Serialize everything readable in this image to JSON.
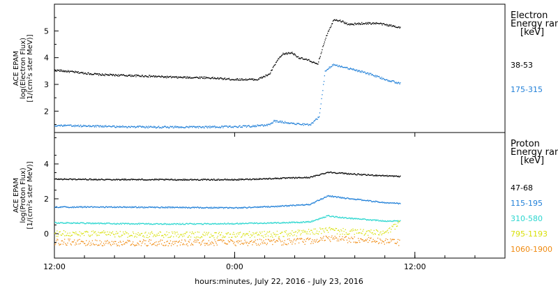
{
  "chart_data": [
    {
      "type": "scatter",
      "panel": "electron",
      "ylabel": [
        "ACE EPAM",
        "log(Electron Flux)",
        "[1/(cm²s ster MeV)]"
      ],
      "ylim": [
        1.2,
        6.0
      ],
      "yticks": [
        2,
        3,
        4,
        5
      ],
      "legend_title": [
        "Electron",
        "Energy ranges",
        "[keV]"
      ],
      "series": [
        {
          "name": "38-53",
          "color": "#000000",
          "x": [
            0,
            3,
            6,
            8,
            10,
            12,
            13.5,
            14.3,
            14.8,
            15.2,
            15.8,
            16.3,
            17,
            17.5,
            18,
            18.2,
            18.6,
            19,
            19.6,
            20.5,
            21.5,
            23
          ],
          "values": [
            3.55,
            3.38,
            3.33,
            3.28,
            3.27,
            3.2,
            3.2,
            3.4,
            3.9,
            4.15,
            4.2,
            4.0,
            3.9,
            3.75,
            4.7,
            5.0,
            5.45,
            5.4,
            5.25,
            5.3,
            5.3,
            5.15
          ]
        },
        {
          "name": "175-315",
          "color": "#1f7fd8",
          "x": [
            0,
            3,
            6,
            10,
            13,
            14.3,
            14.6,
            15.3,
            16,
            17,
            17.6,
            18,
            18.5,
            19,
            20,
            21,
            22,
            23
          ],
          "values": [
            1.48,
            1.45,
            1.42,
            1.42,
            1.45,
            1.5,
            1.65,
            1.6,
            1.55,
            1.5,
            1.8,
            3.5,
            3.75,
            3.7,
            3.55,
            3.4,
            3.2,
            3.05
          ]
        }
      ]
    },
    {
      "type": "scatter",
      "panel": "proton",
      "ylabel": [
        "ACE EPAM",
        "log(Proton Flux)",
        "[1/(cm²s ster MeV)]"
      ],
      "ylim": [
        -1.4,
        5.8
      ],
      "yticks": [
        0,
        2,
        4
      ],
      "legend_title": [
        "Proton",
        "Energy ranges",
        "[keV]"
      ],
      "series": [
        {
          "name": "47-68",
          "color": "#000000",
          "x": [
            0,
            4,
            8,
            12,
            15,
            17,
            18.2,
            19,
            20.5,
            22,
            23
          ],
          "values": [
            3.15,
            3.13,
            3.12,
            3.12,
            3.2,
            3.25,
            3.55,
            3.5,
            3.4,
            3.35,
            3.3
          ]
        },
        {
          "name": "115-195",
          "color": "#1f7fd8",
          "x": [
            0,
            4,
            8,
            12,
            15,
            17,
            18.2,
            19,
            20.5,
            22,
            23
          ],
          "values": [
            1.55,
            1.55,
            1.53,
            1.5,
            1.6,
            1.7,
            2.2,
            2.1,
            1.95,
            1.8,
            1.75
          ]
        },
        {
          "name": "310-580",
          "color": "#2ad6cf",
          "x": [
            0,
            4,
            8,
            12,
            15,
            17,
            18.2,
            19,
            20.5,
            22,
            23
          ],
          "values": [
            0.65,
            0.6,
            0.58,
            0.6,
            0.65,
            0.7,
            1.05,
            0.95,
            0.85,
            0.75,
            0.75
          ]
        },
        {
          "name": "795-1193",
          "color": "#d8e00a",
          "x": [
            0,
            4,
            8,
            12,
            15,
            17,
            18.2,
            19,
            20.5,
            22,
            23
          ],
          "values": [
            0.05,
            0.0,
            -0.05,
            -0.05,
            0.0,
            0.1,
            0.25,
            0.15,
            0.1,
            0.05,
            0.65
          ]
        },
        {
          "name": "1060-1900",
          "color": "#f08a10",
          "x": [
            0,
            4,
            8,
            12,
            15,
            17,
            18.2,
            19,
            20.5,
            22,
            23
          ],
          "values": [
            -0.45,
            -0.5,
            -0.5,
            -0.5,
            -0.45,
            -0.4,
            -0.25,
            -0.3,
            -0.35,
            -0.4,
            -0.5
          ]
        }
      ]
    }
  ],
  "xaxis": {
    "xlim": [
      0,
      30
    ],
    "ticks": [
      {
        "x": 0,
        "label": "12:00"
      },
      {
        "x": 12,
        "label": "0:00"
      },
      {
        "x": 24,
        "label": "12:00"
      }
    ],
    "minor_step": 2,
    "label": "hours:minutes, July 22, 2016 - July 23, 2016"
  }
}
